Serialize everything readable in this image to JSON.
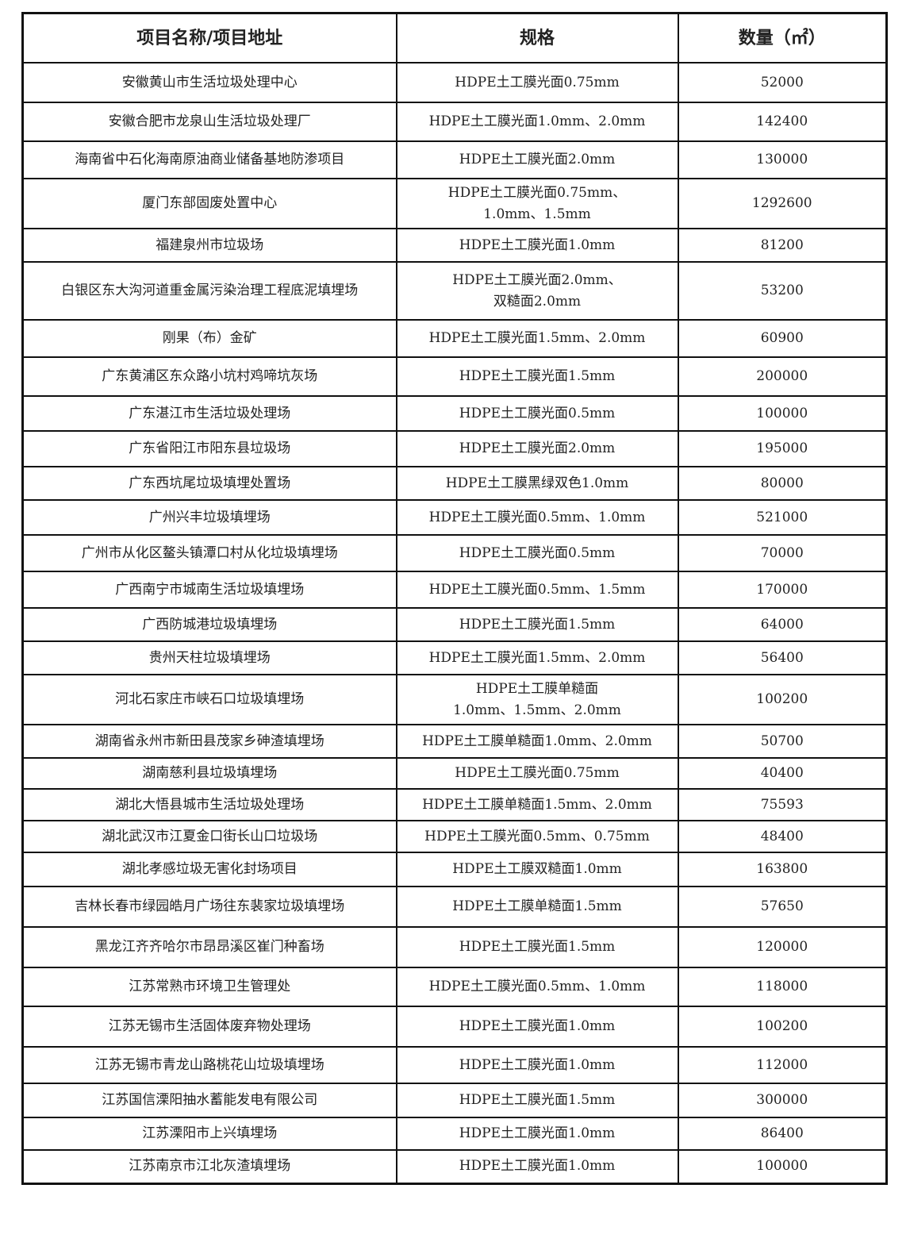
{
  "table": {
    "header": [
      "项目名称/项目地址",
      "规格",
      "数量（㎡）"
    ],
    "rows": [
      [
        "安徽黄山市生活垃圾处理中心",
        "HDPE土工膜光面0.75mm",
        52000
      ],
      [
        "安徽合肥市龙泉山生活垃圾处理厂",
        "HDPE土工膜光面1.0mm、2.0mm",
        142400
      ],
      [
        "海南省中石化海南原油商业储备基地防渗项目",
        "HDPE土工膜光面2.0mm",
        130000
      ],
      [
        "厦门东部固废处置中心",
        "HDPE土工膜光面0.75mm、\n1.0mm、1.5mm",
        1292600
      ],
      [
        "福建泉州市垃圾场",
        "HDPE土工膜光面1.0mm",
        81200
      ],
      [
        "白银区东大沟河道重金属污染治理工程底泥填埋场",
        "HDPE土工膜光面2.0mm、\n双糙面2.0mm",
        53200
      ],
      [
        "刚果（布）金矿",
        "HDPE土工膜光面1.5mm、2.0mm",
        60900
      ],
      [
        "广东黄浦区东众路小坑村鸡啼坑灰场",
        "HDPE土工膜光面1.5mm",
        200000
      ],
      [
        "广东湛江市生活垃圾处理场",
        "HDPE土工膜光面0.5mm",
        100000
      ],
      [
        "广东省阳江市阳东县垃圾场",
        "HDPE土工膜光面2.0mm",
        195000
      ],
      [
        "广东西坑尾垃圾填埋处置场",
        "HDPE土工膜黑绿双色1.0mm",
        80000
      ],
      [
        "广州兴丰垃圾填埋场",
        "HDPE土工膜光面0.5mm、1.0mm",
        521000
      ],
      [
        "广州市从化区鳌头镇潭口村从化垃圾填埋场",
        "HDPE土工膜光面0.5mm",
        70000
      ],
      [
        "广西南宁市城南生活垃圾填埋场",
        "HDPE土工膜光面0.5mm、1.5mm",
        170000
      ],
      [
        "广西防城港垃圾填埋场",
        "HDPE土工膜光面1.5mm",
        64000
      ],
      [
        "贵州天柱垃圾填埋场",
        "HDPE土工膜光面1.5mm、2.0mm",
        56400
      ],
      [
        "河北石家庄市峡石口垃圾填埋场",
        "HDPE土工膜单糙面\n1.0mm、1.5mm、2.0mm",
        100200
      ],
      [
        "湖南省永州市新田县茂家乡砷渣填埋场",
        "HDPE土工膜单糙面1.0mm、2.0mm",
        50700
      ],
      [
        "湖南慈利县垃圾填埋场",
        "HDPE土工膜光面0.75mm",
        40400
      ],
      [
        "湖北大悟县城市生活垃圾处理场",
        "HDPE土工膜单糙面1.5mm、2.0mm",
        75593
      ],
      [
        "湖北武汉市江夏金口街长山口垃圾场",
        "HDPE土工膜光面0.5mm、0.75mm",
        48400
      ],
      [
        "湖北孝感垃圾无害化封场项目",
        "HDPE土工膜双糙面1.0mm",
        163800
      ],
      [
        "吉林长春市绿园皓月广场往东裴家垃圾填埋场",
        "HDPE土工膜单糙面1.5mm",
        57650
      ],
      [
        "黑龙江齐齐哈尔市昂昂溪区崔门种畜场",
        "HDPE土工膜光面1.5mm",
        120000
      ],
      [
        "江苏常熟市环境卫生管理处",
        "HDPE土工膜光面0.5mm、1.0mm",
        118000
      ],
      [
        "江苏无锡市生活固体废弃物处理场",
        "HDPE土工膜光面1.0mm",
        100200
      ],
      [
        "江苏无锡市青龙山路桃花山垃圾填埋场",
        "HDPE土工膜光面1.0mm",
        112000
      ],
      [
        "江苏国信溧阳抽水蓄能发电有限公司",
        "HDPE土工膜光面1.5mm",
        300000
      ],
      [
        "江苏溧阳市上兴填埋场",
        "HDPE土工膜光面1.0mm",
        86400
      ],
      [
        "江苏南京市江北灰渣填埋场",
        "HDPE土工膜光面1.0mm",
        100000
      ]
    ]
  }
}
